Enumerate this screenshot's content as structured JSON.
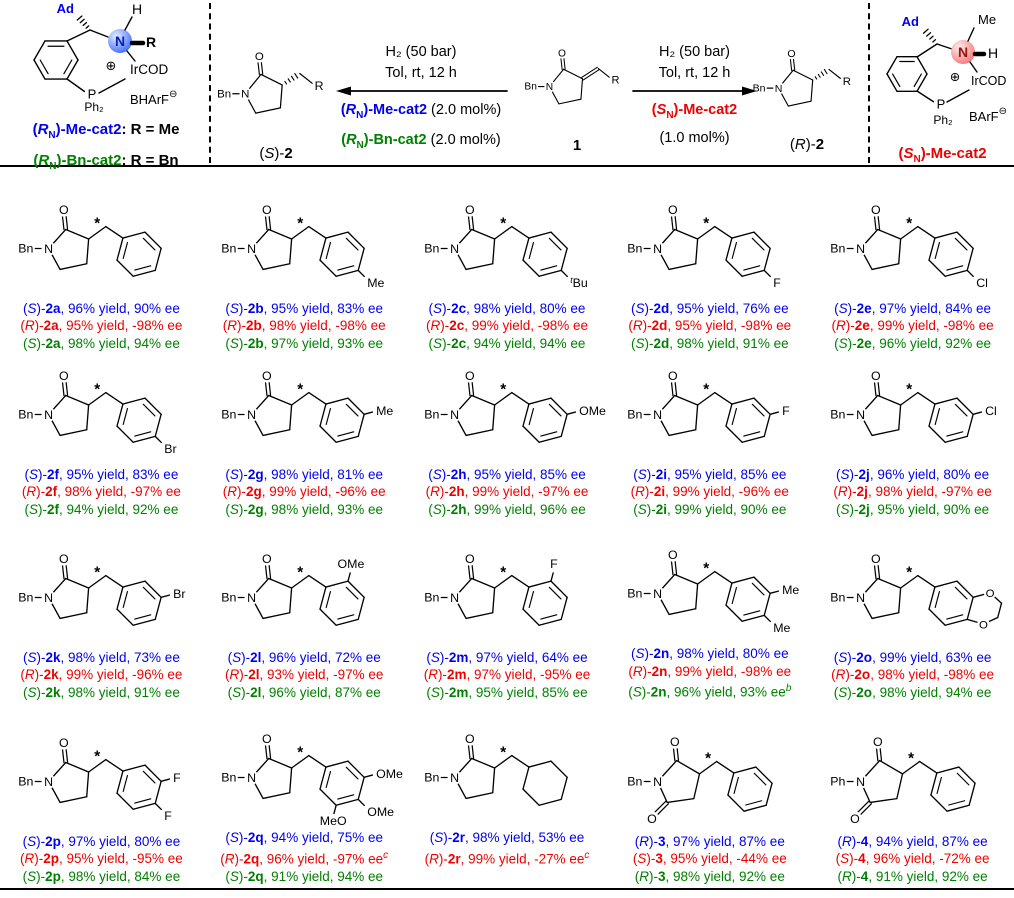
{
  "colors": {
    "blue": "#0000ee",
    "red": "#ee0000",
    "green": "#008000",
    "black": "#000000",
    "sphere_blue": "#2b5cff",
    "sphere_blue_light": "#e6eeff",
    "sphere_red": "#f26a6a",
    "sphere_red_light": "#ffecec"
  },
  "symbols": {
    "star": "*",
    "plus": "⊕",
    "minus": "⊖",
    "o": "O",
    "n": "N"
  },
  "header": {
    "left_catalyst": {
      "ad": "Ad",
      "h_top": "H",
      "n": "N",
      "r_right": "R",
      "plus": "⊕",
      "ircod": "IrCOD",
      "p": "P",
      "ph2": "Ph₂",
      "anion": "BHArF",
      "minus": "⊖",
      "labels": [
        {
          "stereo": "R",
          "sub": "N",
          "tail": "-Me-cat2",
          "suffix": ": R = Me",
          "color": "blue"
        },
        {
          "stereo": "R",
          "sub": "N",
          "tail": "-Bn-cat2",
          "suffix": ": R = Bn",
          "color": "green"
        }
      ]
    },
    "right_catalyst": {
      "ad": "Ad",
      "me_top": "Me",
      "n": "N",
      "h_right": "H",
      "plus": "⊕",
      "ircod": "IrCOD",
      "p": "P",
      "ph2": "Ph₂",
      "anion": "BArF",
      "minus": "⊖",
      "label": {
        "stereo": "S",
        "sub": "N",
        "tail": "-Me-cat2",
        "suffix": "",
        "color": "red"
      }
    },
    "scheme": {
      "left": {
        "cond1": "H₂ (50 bar)",
        "cond2": "Tol, rt, 12 h",
        "cats": [
          {
            "stereo": "R",
            "sub": "N",
            "tail": "-Me-cat2",
            "load": " (2.0 mol%)",
            "color": "blue"
          },
          {
            "stereo": "R",
            "sub": "N",
            "tail": "-Bn-cat2",
            "load": " (2.0 mol%)",
            "color": "green"
          }
        ],
        "product": {
          "stereo": "S",
          "name": "2"
        },
        "n_label": "Bn",
        "r_label": "R"
      },
      "substrate": {
        "label": "1",
        "n_label": "Bn",
        "r_label": "R"
      },
      "right": {
        "cond1": "H₂ (50 bar)",
        "cond2": "Tol, rt, 12 h",
        "cat": {
          "stereo": "S",
          "sub": "N",
          "tail": "-Me-cat2",
          "color": "red"
        },
        "load": "(1.0 mol%)",
        "product": {
          "stereo": "R",
          "name": "2"
        },
        "n_label": "Bn",
        "r_label": "R"
      }
    }
  },
  "grid": {
    "words": {
      "yield": "yield",
      "ee": "ee"
    },
    "cells": [
      {
        "id": "2a",
        "structure": {
          "core": "lactam",
          "n_label": "Bn",
          "ring": "benzene",
          "subs": []
        },
        "lines": [
          {
            "stereo": "S",
            "name": "2a",
            "yield": "96%",
            "ee": "90%",
            "sup": "",
            "color": "blue"
          },
          {
            "stereo": "R",
            "name": "2a",
            "yield": "95%",
            "ee": "-98%",
            "sup": "",
            "color": "red"
          },
          {
            "stereo": "S",
            "name": "2a",
            "yield": "98%",
            "ee": "94%",
            "sup": "",
            "color": "green"
          }
        ]
      },
      {
        "id": "2b",
        "structure": {
          "core": "lactam",
          "n_label": "Bn",
          "ring": "benzene",
          "subs": [
            {
              "pos": "para",
              "label": "Me"
            }
          ]
        },
        "lines": [
          {
            "stereo": "S",
            "name": "2b",
            "yield": "95%",
            "ee": "83%",
            "sup": "",
            "color": "blue"
          },
          {
            "stereo": "R",
            "name": "2b",
            "yield": "98%",
            "ee": "-98%",
            "sup": "",
            "color": "red"
          },
          {
            "stereo": "S",
            "name": "2b",
            "yield": "97%",
            "ee": "93%",
            "sup": "",
            "color": "green"
          }
        ]
      },
      {
        "id": "2c",
        "structure": {
          "core": "lactam",
          "n_label": "Bn",
          "ring": "benzene",
          "subs": [
            {
              "pos": "para",
              "label": "Bu",
              "sup_pre": "t"
            }
          ]
        },
        "lines": [
          {
            "stereo": "S",
            "name": "2c",
            "yield": "98%",
            "ee": "80%",
            "sup": "",
            "color": "blue"
          },
          {
            "stereo": "R",
            "name": "2c",
            "yield": "99%",
            "ee": "-98%",
            "sup": "",
            "color": "red"
          },
          {
            "stereo": "S",
            "name": "2c",
            "yield": "94%",
            "ee": "94%",
            "sup": "",
            "color": "green"
          }
        ]
      },
      {
        "id": "2d",
        "structure": {
          "core": "lactam",
          "n_label": "Bn",
          "ring": "benzene",
          "subs": [
            {
              "pos": "para",
              "label": "F"
            }
          ]
        },
        "lines": [
          {
            "stereo": "S",
            "name": "2d",
            "yield": "95%",
            "ee": "76%",
            "sup": "",
            "color": "blue"
          },
          {
            "stereo": "R",
            "name": "2d",
            "yield": "95%",
            "ee": "-98%",
            "sup": "",
            "color": "red"
          },
          {
            "stereo": "S",
            "name": "2d",
            "yield": "98%",
            "ee": "91%",
            "sup": "",
            "color": "green"
          }
        ]
      },
      {
        "id": "2e",
        "structure": {
          "core": "lactam",
          "n_label": "Bn",
          "ring": "benzene",
          "subs": [
            {
              "pos": "para",
              "label": "Cl"
            }
          ]
        },
        "lines": [
          {
            "stereo": "S",
            "name": "2e",
            "yield": "97%",
            "ee": "84%",
            "sup": "",
            "color": "blue"
          },
          {
            "stereo": "R",
            "name": "2e",
            "yield": "99%",
            "ee": "-98%",
            "sup": "",
            "color": "red"
          },
          {
            "stereo": "S",
            "name": "2e",
            "yield": "96%",
            "ee": "92%",
            "sup": "",
            "color": "green"
          }
        ]
      },
      {
        "id": "2f",
        "structure": {
          "core": "lactam",
          "n_label": "Bn",
          "ring": "benzene",
          "subs": [
            {
              "pos": "para",
              "label": "Br"
            }
          ]
        },
        "lines": [
          {
            "stereo": "S",
            "name": "2f",
            "yield": "95%",
            "ee": "83%",
            "sup": "",
            "color": "blue"
          },
          {
            "stereo": "R",
            "name": "2f",
            "yield": "98%",
            "ee": "-97%",
            "sup": "",
            "color": "red"
          },
          {
            "stereo": "S",
            "name": "2f",
            "yield": "94%",
            "ee": "92%",
            "sup": "",
            "color": "green"
          }
        ]
      },
      {
        "id": "2g",
        "structure": {
          "core": "lactam",
          "n_label": "Bn",
          "ring": "benzene",
          "subs": [
            {
              "pos": "meta",
              "label": "Me"
            }
          ]
        },
        "lines": [
          {
            "stereo": "S",
            "name": "2g",
            "yield": "98%",
            "ee": "81%",
            "sup": "",
            "color": "blue"
          },
          {
            "stereo": "R",
            "name": "2g",
            "yield": "99%",
            "ee": "-96%",
            "sup": "",
            "color": "red"
          },
          {
            "stereo": "S",
            "name": "2g",
            "yield": "98%",
            "ee": "93%",
            "sup": "",
            "color": "green"
          }
        ]
      },
      {
        "id": "2h",
        "structure": {
          "core": "lactam",
          "n_label": "Bn",
          "ring": "benzene",
          "subs": [
            {
              "pos": "meta",
              "label": "OMe"
            }
          ]
        },
        "lines": [
          {
            "stereo": "S",
            "name": "2h",
            "yield": "95%",
            "ee": "85%",
            "sup": "",
            "color": "blue"
          },
          {
            "stereo": "R",
            "name": "2h",
            "yield": "99%",
            "ee": "-97%",
            "sup": "",
            "color": "red"
          },
          {
            "stereo": "S",
            "name": "2h",
            "yield": "99%",
            "ee": "96%",
            "sup": "",
            "color": "green"
          }
        ]
      },
      {
        "id": "2i",
        "structure": {
          "core": "lactam",
          "n_label": "Bn",
          "ring": "benzene",
          "subs": [
            {
              "pos": "meta",
              "label": "F"
            }
          ]
        },
        "lines": [
          {
            "stereo": "S",
            "name": "2i",
            "yield": "95%",
            "ee": "85%",
            "sup": "",
            "color": "blue"
          },
          {
            "stereo": "R",
            "name": "2i",
            "yield": "99%",
            "ee": "-96%",
            "sup": "",
            "color": "red"
          },
          {
            "stereo": "S",
            "name": "2i",
            "yield": "99%",
            "ee": "90%",
            "sup": "",
            "color": "green"
          }
        ]
      },
      {
        "id": "2j",
        "structure": {
          "core": "lactam",
          "n_label": "Bn",
          "ring": "benzene",
          "subs": [
            {
              "pos": "meta",
              "label": "Cl"
            }
          ]
        },
        "lines": [
          {
            "stereo": "S",
            "name": "2j",
            "yield": "96%",
            "ee": "80%",
            "sup": "",
            "color": "blue"
          },
          {
            "stereo": "R",
            "name": "2j",
            "yield": "98%",
            "ee": "-97%",
            "sup": "",
            "color": "red"
          },
          {
            "stereo": "S",
            "name": "2j",
            "yield": "95%",
            "ee": "90%",
            "sup": "",
            "color": "green"
          }
        ]
      },
      {
        "id": "2k",
        "structure": {
          "core": "lactam",
          "n_label": "Bn",
          "ring": "benzene",
          "subs": [
            {
              "pos": "meta",
              "label": "Br"
            }
          ]
        },
        "lines": [
          {
            "stereo": "S",
            "name": "2k",
            "yield": "98%",
            "ee": "73%",
            "sup": "",
            "color": "blue"
          },
          {
            "stereo": "R",
            "name": "2k",
            "yield": "99%",
            "ee": "-96%",
            "sup": "",
            "color": "red"
          },
          {
            "stereo": "S",
            "name": "2k",
            "yield": "98%",
            "ee": "91%",
            "sup": "",
            "color": "green"
          }
        ]
      },
      {
        "id": "2l",
        "structure": {
          "core": "lactam",
          "n_label": "Bn",
          "ring": "benzene",
          "subs": [
            {
              "pos": "ortho",
              "label": "OMe"
            }
          ]
        },
        "lines": [
          {
            "stereo": "S",
            "name": "2l",
            "yield": "96%",
            "ee": "72%",
            "sup": "",
            "color": "blue"
          },
          {
            "stereo": "R",
            "name": "2l",
            "yield": "93%",
            "ee": "-97%",
            "sup": "",
            "color": "red"
          },
          {
            "stereo": "S",
            "name": "2l",
            "yield": "96%",
            "ee": "87%",
            "sup": "",
            "color": "green"
          }
        ]
      },
      {
        "id": "2m",
        "structure": {
          "core": "lactam",
          "n_label": "Bn",
          "ring": "benzene",
          "subs": [
            {
              "pos": "ortho",
              "label": "F"
            }
          ]
        },
        "lines": [
          {
            "stereo": "S",
            "name": "2m",
            "yield": "97%",
            "ee": "64%",
            "sup": "",
            "color": "blue"
          },
          {
            "stereo": "R",
            "name": "2m",
            "yield": "97%",
            "ee": "-95%",
            "sup": "",
            "color": "red"
          },
          {
            "stereo": "S",
            "name": "2m",
            "yield": "95%",
            "ee": "85%",
            "sup": "",
            "color": "green"
          }
        ]
      },
      {
        "id": "2n",
        "structure": {
          "core": "lactam",
          "n_label": "Bn",
          "ring": "benzene",
          "subs": [
            {
              "pos": "meta",
              "label": "Me"
            },
            {
              "pos": "para",
              "label": "Me"
            }
          ]
        },
        "lines": [
          {
            "stereo": "S",
            "name": "2n",
            "yield": "98%",
            "ee": "80%",
            "sup": "",
            "color": "blue"
          },
          {
            "stereo": "R",
            "name": "2n",
            "yield": "99%",
            "ee": "-98%",
            "sup": "",
            "color": "red"
          },
          {
            "stereo": "S",
            "name": "2n",
            "yield": "96%",
            "ee": "93%",
            "sup": "b",
            "color": "green"
          }
        ]
      },
      {
        "id": "2o",
        "structure": {
          "core": "lactam",
          "n_label": "Bn",
          "ring": "benzene",
          "fused": "dioxane",
          "subs": []
        },
        "lines": [
          {
            "stereo": "S",
            "name": "2o",
            "yield": "99%",
            "ee": "63%",
            "sup": "",
            "color": "blue"
          },
          {
            "stereo": "R",
            "name": "2o",
            "yield": "98%",
            "ee": "-98%",
            "sup": "",
            "color": "red"
          },
          {
            "stereo": "S",
            "name": "2o",
            "yield": "98%",
            "ee": "94%",
            "sup": "",
            "color": "green"
          }
        ]
      },
      {
        "id": "2p",
        "structure": {
          "core": "lactam",
          "n_label": "Bn",
          "ring": "benzene",
          "subs": [
            {
              "pos": "meta",
              "label": "F"
            },
            {
              "pos": "para",
              "label": "F"
            }
          ]
        },
        "lines": [
          {
            "stereo": "S",
            "name": "2p",
            "yield": "97%",
            "ee": "80%",
            "sup": "",
            "color": "blue"
          },
          {
            "stereo": "R",
            "name": "2p",
            "yield": "95%",
            "ee": "-95%",
            "sup": "",
            "color": "red"
          },
          {
            "stereo": "S",
            "name": "2p",
            "yield": "98%",
            "ee": "84%",
            "sup": "",
            "color": "green"
          }
        ]
      },
      {
        "id": "2q",
        "structure": {
          "core": "lactam",
          "n_label": "Bn",
          "ring": "benzene",
          "subs": [
            {
              "pos": "meta",
              "label": "OMe"
            },
            {
              "pos": "para",
              "label": "OMe"
            },
            {
              "pos": "meta2",
              "label": "MeO"
            }
          ]
        },
        "lines": [
          {
            "stereo": "S",
            "name": "2q",
            "yield": "94%",
            "ee": "75%",
            "sup": "",
            "color": "blue"
          },
          {
            "stereo": "R",
            "name": "2q",
            "yield": "96%",
            "ee": "-97%",
            "sup": "c",
            "color": "red"
          },
          {
            "stereo": "S",
            "name": "2q",
            "yield": "91%",
            "ee": "94%",
            "sup": "",
            "color": "green"
          }
        ]
      },
      {
        "id": "2r",
        "structure": {
          "core": "lactam",
          "n_label": "Bn",
          "ring": "cyclohexane",
          "subs": []
        },
        "pad_after": 1,
        "lines": [
          {
            "stereo": "S",
            "name": "2r",
            "yield": "98%",
            "ee": "53%",
            "sup": "",
            "color": "blue"
          },
          {
            "stereo": "R",
            "name": "2r",
            "yield": "99%",
            "ee": "-27%",
            "sup": "c",
            "color": "red"
          }
        ]
      },
      {
        "id": "3",
        "structure": {
          "core": "imide",
          "n_label": "Bn",
          "ring": "benzene",
          "subs": []
        },
        "lines": [
          {
            "stereo": "R",
            "name": "3",
            "yield": "97%",
            "ee": "87%",
            "sup": "",
            "color": "blue"
          },
          {
            "stereo": "S",
            "name": "3",
            "yield": "95%",
            "ee": "-44%",
            "sup": "",
            "color": "red"
          },
          {
            "stereo": "R",
            "name": "3",
            "yield": "98%",
            "ee": "92%",
            "sup": "",
            "color": "green"
          }
        ]
      },
      {
        "id": "4",
        "structure": {
          "core": "imide",
          "n_label": "Ph",
          "ring": "benzene",
          "subs": []
        },
        "lines": [
          {
            "stereo": "R",
            "name": "4",
            "yield": "94%",
            "ee": "87%",
            "sup": "",
            "color": "blue"
          },
          {
            "stereo": "S",
            "name": "4",
            "yield": "96%",
            "ee": "-72%",
            "sup": "",
            "color": "red"
          },
          {
            "stereo": "R",
            "name": "4",
            "yield": "91%",
            "ee": "92%",
            "sup": "",
            "color": "green"
          }
        ]
      }
    ]
  }
}
